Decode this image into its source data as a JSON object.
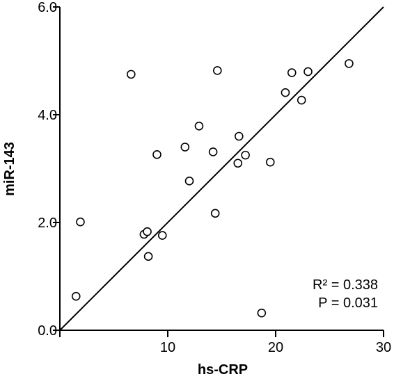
{
  "chart_data": {
    "type": "scatter",
    "title": "",
    "xlabel": "hs-CRP",
    "ylabel": "miR-143",
    "xlim": [
      0,
      30
    ],
    "ylim": [
      0,
      6
    ],
    "x_ticks": [
      0,
      10,
      20,
      30
    ],
    "x_tick_labels": [
      "",
      "10",
      "20",
      "30"
    ],
    "y_ticks": [
      0,
      2,
      4,
      6
    ],
    "y_tick_labels": [
      "0.0",
      "2.0",
      "4.0",
      "6.0"
    ],
    "grid": false,
    "marker": "open-circle",
    "series": [
      {
        "points": [
          {
            "x": 1.5,
            "y": 0.63
          },
          {
            "x": 1.9,
            "y": 2.01
          },
          {
            "x": 6.6,
            "y": 4.75
          },
          {
            "x": 7.8,
            "y": 1.78
          },
          {
            "x": 8.1,
            "y": 1.83
          },
          {
            "x": 8.2,
            "y": 1.37
          },
          {
            "x": 9.0,
            "y": 3.26
          },
          {
            "x": 9.5,
            "y": 1.76
          },
          {
            "x": 11.6,
            "y": 3.4
          },
          {
            "x": 12.0,
            "y": 2.77
          },
          {
            "x": 12.9,
            "y": 3.79
          },
          {
            "x": 14.2,
            "y": 3.31
          },
          {
            "x": 14.4,
            "y": 2.17
          },
          {
            "x": 14.6,
            "y": 4.82
          },
          {
            "x": 16.5,
            "y": 3.1
          },
          {
            "x": 16.6,
            "y": 3.6
          },
          {
            "x": 17.2,
            "y": 3.25
          },
          {
            "x": 18.7,
            "y": 0.32
          },
          {
            "x": 19.5,
            "y": 3.12
          },
          {
            "x": 20.9,
            "y": 4.41
          },
          {
            "x": 21.5,
            "y": 4.78
          },
          {
            "x": 22.4,
            "y": 4.27
          },
          {
            "x": 23.0,
            "y": 4.8
          },
          {
            "x": 26.8,
            "y": 4.95
          }
        ]
      }
    ],
    "regression_line": {
      "x": [
        0,
        30
      ],
      "y": [
        0.0,
        6.0
      ]
    },
    "annotations": {
      "r_squared": "R² = 0.338",
      "p_value": "P = 0.031"
    }
  }
}
